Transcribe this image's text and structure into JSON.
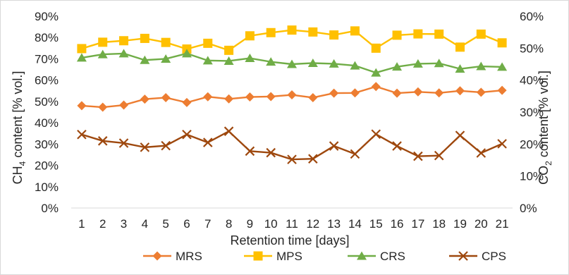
{
  "chart_data": {
    "type": "line",
    "title": "",
    "xlabel": "Retention time [days]",
    "ylabel_left": {
      "pre": "CH",
      "sub": "4",
      "post": " content [% vol.]"
    },
    "ylabel_right": {
      "pre": "CO",
      "sub": "2",
      "post": " content [% vol.]"
    },
    "x": [
      "1",
      "2",
      "3",
      "4",
      "5",
      "6",
      "7",
      "8",
      "9",
      "10",
      "11",
      "12",
      "13",
      "14",
      "15",
      "16",
      "17",
      "18",
      "19",
      "20",
      "21"
    ],
    "y_left_ticks": [
      "0%",
      "10%",
      "20%",
      "30%",
      "40%",
      "50%",
      "60%",
      "70%",
      "80%",
      "90%"
    ],
    "y_right_ticks": [
      "0%",
      "10%",
      "20%",
      "30%",
      "40%",
      "50%",
      "60%"
    ],
    "ylim_left": [
      0,
      90
    ],
    "ylim_right": [
      0,
      60
    ],
    "grid": false,
    "legend_position": "bottom",
    "series": [
      {
        "name": "MRS",
        "axis": "left",
        "marker": "diamond",
        "color": "#ED7D31",
        "values": [
          48,
          47.3,
          48.3,
          51.1,
          51.8,
          49.5,
          52.2,
          51.2,
          52.1,
          52.3,
          53.1,
          51.8,
          53.9,
          54,
          57,
          53.9,
          54.5,
          54,
          55,
          54.3,
          55.2
        ]
      },
      {
        "name": "MPS",
        "axis": "left",
        "marker": "square",
        "color": "#FFC000",
        "values": [
          74.8,
          77.8,
          78.5,
          79.6,
          77.7,
          74.6,
          77.3,
          74,
          80.8,
          82.3,
          83.5,
          82.6,
          81.2,
          83.1,
          75,
          81.1,
          81.7,
          81.6,
          75.5,
          81.6,
          77.5
        ]
      },
      {
        "name": "CRS",
        "axis": "left",
        "marker": "triangle",
        "color": "#70AD47",
        "values": [
          70.5,
          72.1,
          72.5,
          69.4,
          70,
          72.5,
          69.2,
          69,
          70.3,
          68.6,
          67.5,
          68,
          67.7,
          66.8,
          63.5,
          66.3,
          67.7,
          67.9,
          65.3,
          66.5,
          66.2
        ]
      },
      {
        "name": "CPS",
        "axis": "right",
        "marker": "x",
        "color": "#9E480E",
        "values": [
          23,
          21,
          20.3,
          19,
          19.5,
          23,
          20.5,
          24,
          17.8,
          17.3,
          15.2,
          15.4,
          19.4,
          16.9,
          23.1,
          19.4,
          16.2,
          16.4,
          22.7,
          17.2,
          20.1
        ]
      }
    ]
  }
}
